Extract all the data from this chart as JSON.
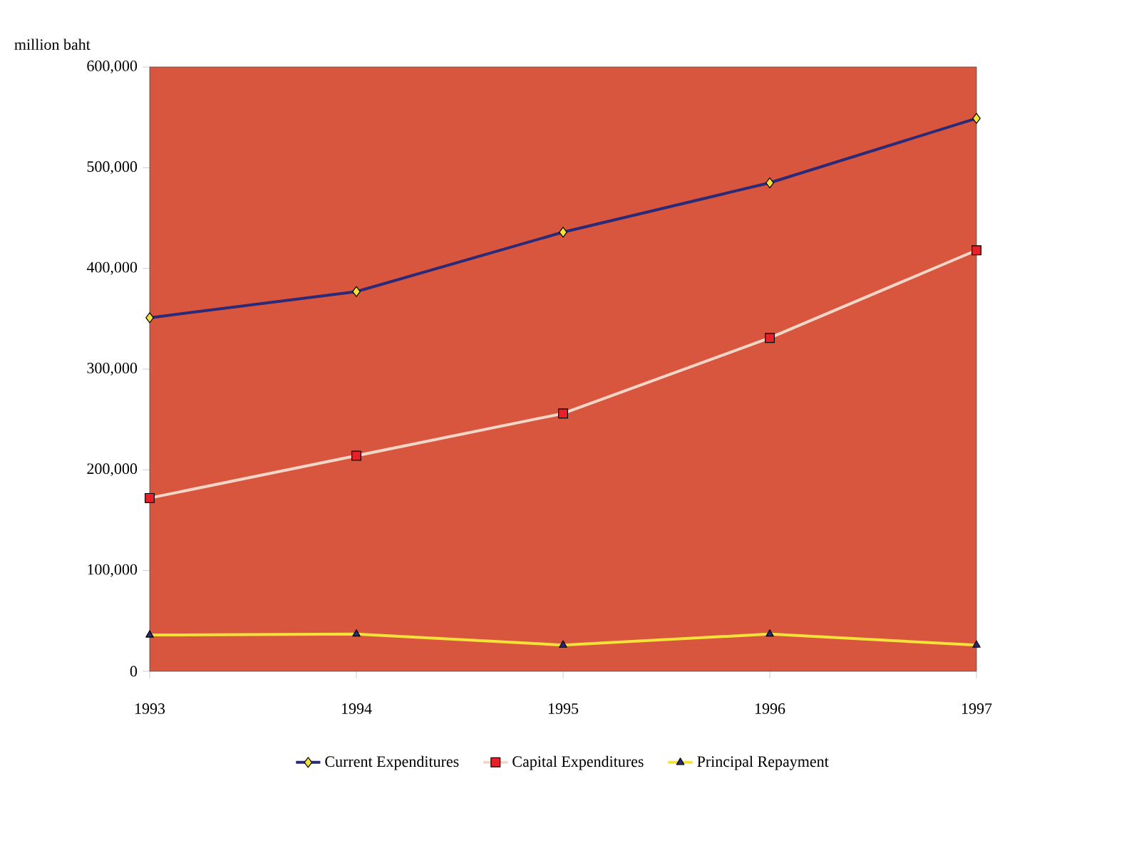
{
  "chart_data": {
    "type": "line",
    "ylabel": "million baht",
    "categories": [
      "1993",
      "1994",
      "1995",
      "1996",
      "1997"
    ],
    "series": [
      {
        "name": "Current Expenditures",
        "color": "#2b2a78",
        "marker": "diamond",
        "values": [
          351000,
          377000,
          436000,
          485000,
          549000
        ]
      },
      {
        "name": "Capital Expenditures",
        "color": "#f2d6c8",
        "marker": "square",
        "values": [
          172000,
          214000,
          256000,
          331000,
          418000
        ]
      },
      {
        "name": "Principal Repayment",
        "color": "#f2e23a",
        "marker": "triangle",
        "values": [
          36000,
          37000,
          26000,
          37000,
          26000
        ]
      }
    ],
    "ylim": [
      0,
      600000
    ],
    "yticks": [
      {
        "value": 0,
        "label": "0"
      },
      {
        "value": 100000,
        "label": "100,000"
      },
      {
        "value": 200000,
        "label": "200,000"
      },
      {
        "value": 300000,
        "label": "300,000"
      },
      {
        "value": 400000,
        "label": "400,000"
      },
      {
        "value": 500000,
        "label": "500,000"
      },
      {
        "value": 600000,
        "label": "600,000"
      }
    ],
    "grid": false,
    "legend": "bottom",
    "line_style": "solid"
  }
}
